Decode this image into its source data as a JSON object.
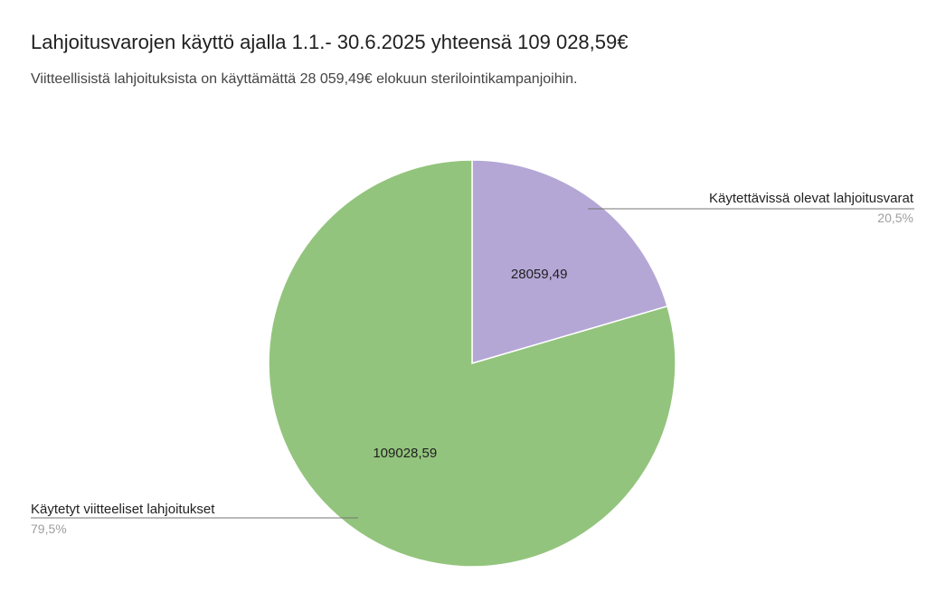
{
  "chart_data": {
    "type": "pie",
    "title": "Lahjoitusvarojen käyttö ajalla 1.1.- 30.6.2025 yhteensä 109 028,59€",
    "subtitle": "Viitteellisistä lahjoituksista on käyttämättä 28 059,49€ elokuun sterilointikampanjoihin.",
    "slices": [
      {
        "name": "Käytettävissä olevat lahjoitusvarat",
        "value": 28059.49,
        "value_label": "28059,49",
        "percent_label": "20,5%",
        "color": "#b4a7d6"
      },
      {
        "name": "Käytetyt viitteeliset lahjoitukset",
        "value": 109028.59,
        "value_label": "109028,59",
        "percent_label": "79,5%",
        "color": "#93c47d"
      }
    ]
  }
}
